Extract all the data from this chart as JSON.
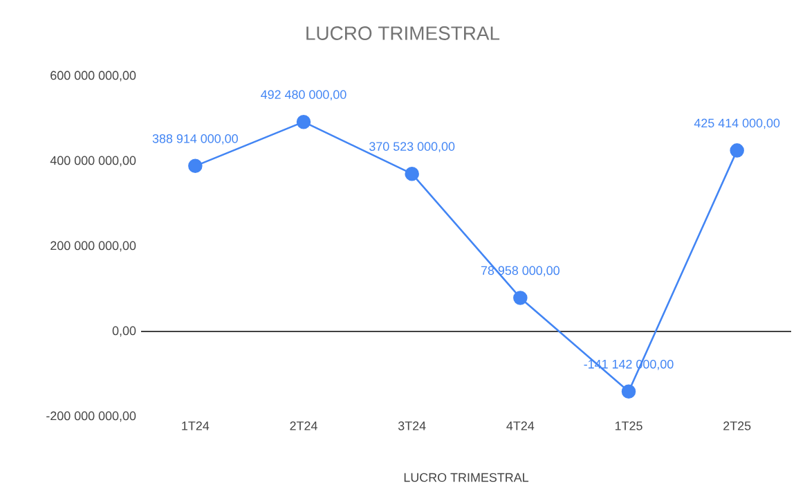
{
  "chart_data": {
    "type": "line",
    "title": "LUCRO TRIMESTRAL",
    "xlabel": "LUCRO TRIMESTRAL",
    "categories": [
      "1T24",
      "2T24",
      "3T24",
      "4T24",
      "1T25",
      "2T25"
    ],
    "values": [
      388914000,
      492480000,
      370523000,
      78958000,
      -141142000,
      425414000
    ],
    "value_labels": [
      "388 914 000,00",
      "492 480 000,00",
      "370 523 000,00",
      "78 958 000,00",
      "-141 142 000,00",
      "425 414 000,00"
    ],
    "color": "#4285f4",
    "marker": "circle",
    "line_style": "solid",
    "ylim": [
      -200000000,
      600000000
    ],
    "yticks": [
      {
        "value": -200000000,
        "label": "-200 000 000,00"
      },
      {
        "value": 0,
        "label": "0,00"
      },
      {
        "value": 200000000,
        "label": "200 000 000,00"
      },
      {
        "value": 400000000,
        "label": "400 000 000,00"
      },
      {
        "value": 600000000,
        "label": "600 000 000,00"
      }
    ]
  }
}
